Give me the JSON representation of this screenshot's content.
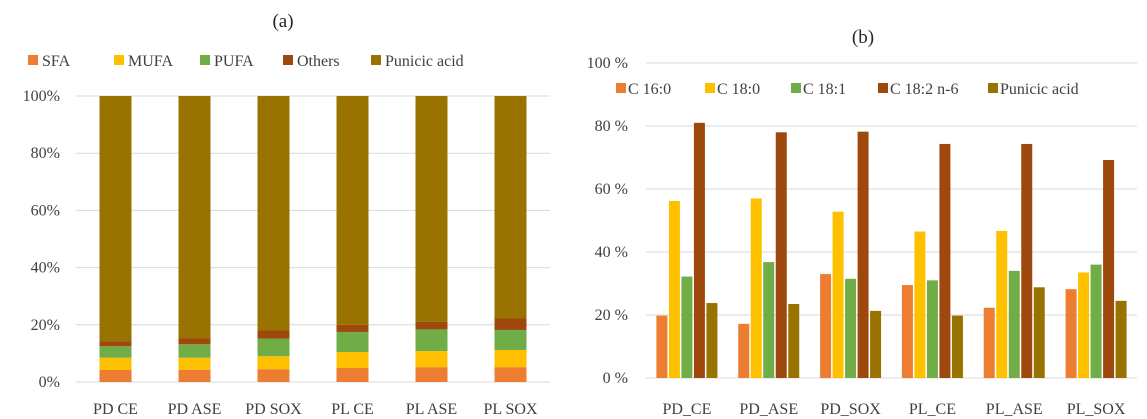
{
  "chart_data": [
    {
      "type": "bar",
      "stacked": true,
      "title": "(a)",
      "xlabel": "",
      "ylabel": "",
      "ylim": [
        0,
        100
      ],
      "yticks": [
        "0%",
        "20%",
        "40%",
        "60%",
        "80%",
        "100%"
      ],
      "grid": true,
      "legend_position": "top",
      "categories": [
        "PD_CE",
        "PD_ASE",
        "PD_SOX",
        "PL_CE",
        "PL_ASE",
        "PL_SOX"
      ],
      "category_labels": [
        "PD CE",
        "PD ASE",
        "PD SOX",
        "PL CE",
        "PL ASE",
        "PL SOX"
      ],
      "series": [
        {
          "name": "SFA",
          "color": "#ed7d31",
          "values": [
            4.2,
            4.3,
            4.5,
            4.9,
            5.2,
            5.2
          ]
        },
        {
          "name": "MUFA",
          "color": "#ffc000",
          "values": [
            4.3,
            4.2,
            4.5,
            5.6,
            5.6,
            6.0
          ]
        },
        {
          "name": "PUFA",
          "color": "#70ad47",
          "values": [
            4.0,
            4.7,
            6.2,
            7.0,
            7.6,
            7.0
          ]
        },
        {
          "name": "Others",
          "color": "#9e480e",
          "values": [
            1.8,
            2.0,
            2.8,
            2.5,
            2.6,
            4.0
          ]
        },
        {
          "name": "Punicic acid",
          "color": "#997300",
          "values": [
            85.7,
            84.8,
            82.0,
            80.0,
            79.0,
            77.8
          ]
        }
      ]
    },
    {
      "type": "bar",
      "stacked": false,
      "title": "(b)",
      "xlabel": "",
      "ylabel": "",
      "ylim": [
        0,
        100
      ],
      "yticks": [
        "0 %",
        "20 %",
        "40 %",
        "60 %",
        "80 %",
        "100 %"
      ],
      "grid": true,
      "legend_position": "top",
      "categories": [
        "PD_CE",
        "PD_ASE",
        "PD_SOX",
        "PL_CE",
        "PL_ASE",
        "PL_SOX"
      ],
      "series": [
        {
          "name": "C 16:0",
          "color": "#ed7d31",
          "values": [
            19.8,
            17.2,
            33.0,
            29.5,
            22.3,
            28.2
          ]
        },
        {
          "name": "C 18:0",
          "color": "#ffc000",
          "values": [
            56.2,
            57.0,
            52.8,
            46.5,
            46.7,
            33.5
          ]
        },
        {
          "name": "C 18:1",
          "color": "#70ad47",
          "values": [
            32.2,
            36.8,
            31.5,
            31.0,
            34.0,
            36.0
          ]
        },
        {
          "name": "C 18:2 n-6",
          "color": "#9e480e",
          "values": [
            81.0,
            78.0,
            78.2,
            74.3,
            74.3,
            69.2
          ]
        },
        {
          "name": "Punicic acid",
          "color": "#997300",
          "values": [
            23.8,
            23.5,
            21.3,
            19.8,
            28.8,
            24.5
          ]
        }
      ]
    }
  ]
}
